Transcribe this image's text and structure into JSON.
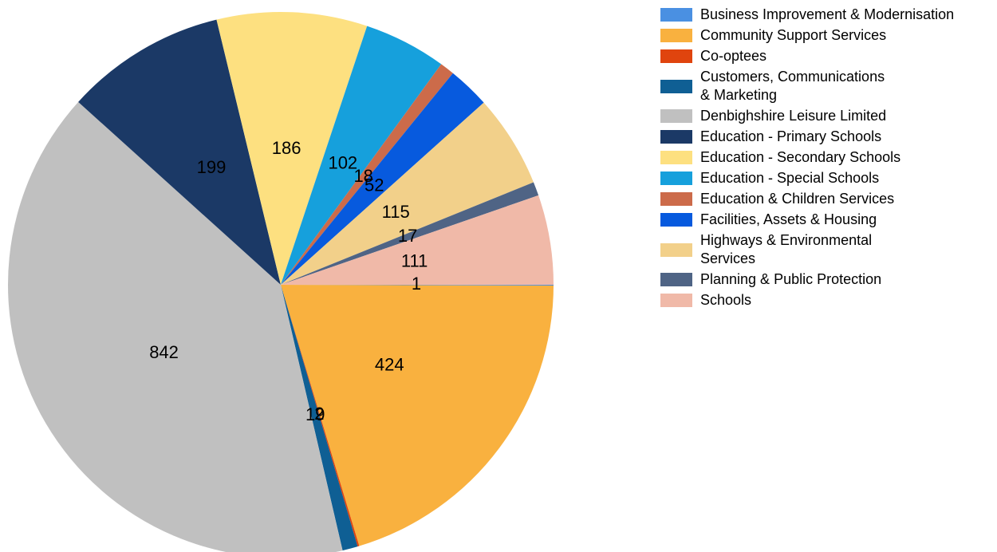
{
  "chart_data": {
    "type": "pie",
    "categories": [
      "Business Improvement & Modernisation",
      "Community Support Services",
      "Co-optees",
      "Customers, Communications\n& Marketing",
      "Denbighshire Leisure Limited",
      "Education - Primary Schools",
      "Education - Secondary Schools",
      "Education - Special Schools",
      "Education & Children Services",
      "Facilities, Assets & Housing",
      "Highways & Environmental\nServices",
      "Planning & Public Protection",
      "Schools"
    ],
    "values": [
      1,
      424,
      2,
      19,
      842,
      199,
      186,
      102,
      18,
      52,
      115,
      17,
      111
    ],
    "colors": [
      "#4a90e2",
      "#f9b13f",
      "#e0440e",
      "#0f5f94",
      "#c0c0c0",
      "#1b3966",
      "#fde080",
      "#16a0dc",
      "#cc6b4a",
      "#075ade",
      "#f2d08a",
      "#4f6485",
      "#f0b9a8"
    ],
    "legend": "right"
  }
}
